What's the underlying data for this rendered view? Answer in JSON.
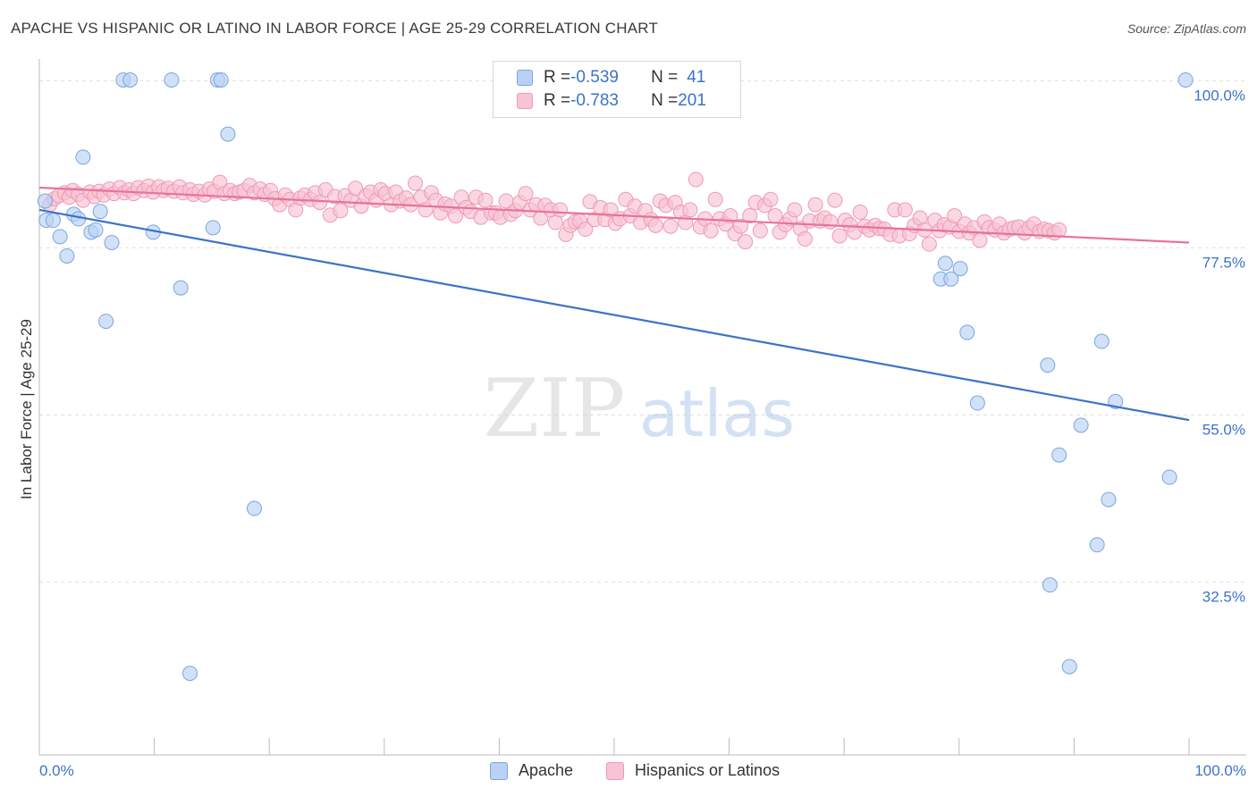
{
  "header": {
    "title": "APACHE VS HISPANIC OR LATINO IN LABOR FORCE | AGE 25-29 CORRELATION CHART",
    "source": "Source: ZipAtlas.com"
  },
  "watermark": {
    "zip": "ZIP",
    "atlas": "atlas"
  },
  "legend_top": {
    "rows": [
      {
        "r_label": "R = ",
        "r_value": "-0.539",
        "n_label": "N = ",
        "n_value": "41"
      },
      {
        "r_label": "R = ",
        "r_value": "-0.783",
        "n_label": "N = ",
        "n_value": "201"
      }
    ]
  },
  "legend_bottom": {
    "apache": "Apache",
    "hispanic": "Hispanics or Latinos"
  },
  "colors": {
    "apache_fill": "#b9d1f3",
    "apache_stroke": "#7aa6e0",
    "apache_line": "#3b73c8",
    "hispanic_fill": "#f8c3d3",
    "hispanic_stroke": "#ee9ab5",
    "hispanic_line": "#e8729a",
    "axis_text": "#3b73c8",
    "grid": "#dddddd"
  },
  "chart_data": {
    "type": "scatter",
    "title": "APACHE VS HISPANIC OR LATINO IN LABOR FORCE | AGE 25-29 CORRELATION CHART",
    "xlabel": "",
    "ylabel": "In Labor Force | Age 25-29",
    "xlim": [
      0,
      100
    ],
    "ylim": [
      9.2,
      102.2
    ],
    "x_tick_labels": [
      "0.0%",
      "100.0%"
    ],
    "y_ticks": [
      {
        "value": 100,
        "label": "100.0%"
      },
      {
        "value": 77.5,
        "label": "77.5%"
      },
      {
        "value": 55,
        "label": "55.0%"
      },
      {
        "value": 32.5,
        "label": "32.5%"
      }
    ],
    "grid": true,
    "legend_position": "top-center",
    "series": [
      {
        "name": "Apache",
        "r": -0.539,
        "n": 41,
        "trend": {
          "x": [
            0,
            100
          ],
          "y": [
            82.6,
            54.3
          ]
        },
        "points": [
          [
            0.5,
            83.8
          ],
          [
            0.6,
            81.2
          ],
          [
            1.2,
            81.2
          ],
          [
            1.8,
            79.0
          ],
          [
            2.4,
            76.4
          ],
          [
            3.0,
            82.0
          ],
          [
            3.4,
            81.4
          ],
          [
            3.8,
            89.7
          ],
          [
            4.5,
            79.6
          ],
          [
            4.9,
            79.9
          ],
          [
            5.3,
            82.4
          ],
          [
            5.8,
            67.6
          ],
          [
            6.3,
            78.2
          ],
          [
            7.3,
            100.1
          ],
          [
            7.9,
            100.1
          ],
          [
            9.9,
            79.6
          ],
          [
            11.5,
            100.1
          ],
          [
            12.3,
            72.1
          ],
          [
            13.1,
            20.2
          ],
          [
            15.1,
            80.2
          ],
          [
            15.5,
            100.1
          ],
          [
            15.8,
            100.1
          ],
          [
            16.4,
            92.8
          ],
          [
            18.7,
            42.4
          ],
          [
            78.4,
            73.3
          ],
          [
            78.8,
            75.4
          ],
          [
            79.3,
            73.3
          ],
          [
            80.1,
            74.7
          ],
          [
            80.7,
            66.1
          ],
          [
            81.6,
            56.6
          ],
          [
            87.7,
            61.7
          ],
          [
            87.9,
            32.1
          ],
          [
            88.7,
            49.6
          ],
          [
            89.6,
            21.1
          ],
          [
            90.6,
            53.6
          ],
          [
            92.0,
            37.5
          ],
          [
            92.4,
            64.9
          ],
          [
            93.0,
            43.6
          ],
          [
            93.6,
            56.8
          ],
          [
            98.3,
            46.6
          ],
          [
            99.7,
            100.1
          ]
        ]
      },
      {
        "name": "Hispanics or Latinos",
        "r": -0.783,
        "n": 201,
        "trend": {
          "x": [
            0,
            100
          ],
          "y": [
            85.6,
            78.2
          ]
        },
        "points": [
          [
            0.9,
            83.3
          ],
          [
            1.3,
            84.1
          ],
          [
            1.7,
            84.5
          ],
          [
            2.2,
            84.9
          ],
          [
            2.6,
            84.3
          ],
          [
            2.9,
            85.2
          ],
          [
            3.4,
            84.7
          ],
          [
            3.8,
            83.9
          ],
          [
            4.4,
            85.0
          ],
          [
            4.8,
            84.4
          ],
          [
            5.2,
            85.1
          ],
          [
            5.6,
            84.6
          ],
          [
            6.1,
            85.4
          ],
          [
            6.5,
            84.8
          ],
          [
            7.0,
            85.6
          ],
          [
            7.4,
            84.9
          ],
          [
            7.8,
            85.3
          ],
          [
            8.2,
            84.8
          ],
          [
            8.6,
            85.6
          ],
          [
            9.1,
            85.2
          ],
          [
            9.5,
            85.8
          ],
          [
            9.9,
            85.0
          ],
          [
            10.4,
            85.7
          ],
          [
            10.8,
            85.2
          ],
          [
            11.2,
            85.5
          ],
          [
            11.7,
            85.1
          ],
          [
            12.2,
            85.7
          ],
          [
            12.5,
            84.9
          ],
          [
            13.1,
            85.3
          ],
          [
            13.4,
            84.7
          ],
          [
            13.9,
            85.1
          ],
          [
            14.4,
            84.6
          ],
          [
            14.8,
            85.4
          ],
          [
            15.2,
            85.1
          ],
          [
            15.7,
            86.3
          ],
          [
            16.1,
            84.8
          ],
          [
            16.6,
            85.2
          ],
          [
            17.0,
            84.8
          ],
          [
            17.4,
            85.0
          ],
          [
            17.8,
            85.2
          ],
          [
            18.3,
            85.9
          ],
          [
            18.7,
            84.9
          ],
          [
            19.2,
            85.4
          ],
          [
            19.6,
            84.7
          ],
          [
            20.1,
            85.2
          ],
          [
            20.5,
            84.1
          ],
          [
            20.9,
            83.3
          ],
          [
            21.4,
            84.6
          ],
          [
            21.8,
            84.0
          ],
          [
            22.3,
            82.6
          ],
          [
            22.7,
            84.2
          ],
          [
            23.1,
            84.6
          ],
          [
            23.6,
            84.0
          ],
          [
            24.0,
            84.9
          ],
          [
            24.4,
            83.6
          ],
          [
            24.9,
            85.3
          ],
          [
            25.3,
            81.9
          ],
          [
            25.7,
            84.4
          ],
          [
            26.2,
            82.5
          ],
          [
            26.6,
            84.5
          ],
          [
            27.1,
            83.9
          ],
          [
            27.5,
            85.5
          ],
          [
            28.0,
            83.1
          ],
          [
            28.4,
            84.5
          ],
          [
            28.8,
            85.0
          ],
          [
            29.3,
            83.9
          ],
          [
            29.7,
            85.3
          ],
          [
            30.1,
            84.8
          ],
          [
            30.6,
            83.3
          ],
          [
            31.0,
            85.0
          ],
          [
            31.4,
            83.8
          ],
          [
            31.9,
            84.2
          ],
          [
            32.3,
            83.3
          ],
          [
            32.7,
            86.2
          ],
          [
            33.2,
            84.3
          ],
          [
            33.6,
            82.6
          ],
          [
            34.1,
            84.9
          ],
          [
            34.5,
            83.9
          ],
          [
            34.9,
            82.2
          ],
          [
            35.3,
            83.4
          ],
          [
            35.8,
            83.1
          ],
          [
            36.2,
            81.8
          ],
          [
            36.7,
            84.3
          ],
          [
            37.1,
            82.9
          ],
          [
            37.5,
            82.4
          ],
          [
            38.0,
            84.3
          ],
          [
            38.4,
            81.6
          ],
          [
            38.8,
            83.9
          ],
          [
            39.3,
            82.2
          ],
          [
            39.7,
            82.2
          ],
          [
            40.1,
            81.6
          ],
          [
            40.6,
            83.8
          ],
          [
            41.0,
            82.0
          ],
          [
            41.4,
            82.5
          ],
          [
            41.8,
            83.6
          ],
          [
            42.3,
            84.8
          ],
          [
            42.7,
            82.6
          ],
          [
            43.2,
            83.3
          ],
          [
            43.6,
            81.5
          ],
          [
            44.0,
            83.2
          ],
          [
            44.5,
            82.6
          ],
          [
            44.9,
            80.9
          ],
          [
            45.3,
            82.6
          ],
          [
            45.8,
            79.3
          ],
          [
            46.2,
            80.5
          ],
          [
            46.6,
            81.0
          ],
          [
            47.0,
            81.1
          ],
          [
            47.5,
            80.0
          ],
          [
            47.9,
            83.7
          ],
          [
            48.3,
            81.3
          ],
          [
            48.8,
            82.9
          ],
          [
            49.2,
            81.3
          ],
          [
            49.7,
            82.6
          ],
          [
            50.1,
            80.8
          ],
          [
            50.5,
            81.4
          ],
          [
            51.0,
            84.0
          ],
          [
            51.4,
            81.8
          ],
          [
            51.8,
            83.1
          ],
          [
            52.3,
            80.9
          ],
          [
            52.7,
            82.5
          ],
          [
            53.2,
            81.3
          ],
          [
            53.6,
            80.5
          ],
          [
            54.0,
            83.8
          ],
          [
            54.5,
            83.2
          ],
          [
            54.9,
            80.4
          ],
          [
            55.3,
            83.6
          ],
          [
            55.8,
            82.3
          ],
          [
            56.2,
            80.9
          ],
          [
            56.6,
            82.6
          ],
          [
            57.1,
            86.7
          ],
          [
            57.5,
            80.3
          ],
          [
            57.9,
            81.4
          ],
          [
            58.4,
            79.8
          ],
          [
            58.8,
            84.0
          ],
          [
            59.2,
            81.4
          ],
          [
            59.7,
            80.7
          ],
          [
            60.1,
            81.8
          ],
          [
            60.5,
            79.4
          ],
          [
            61.0,
            80.4
          ],
          [
            61.4,
            78.3
          ],
          [
            61.8,
            81.8
          ],
          [
            62.3,
            83.6
          ],
          [
            62.7,
            79.8
          ],
          [
            63.1,
            83.2
          ],
          [
            63.6,
            84.0
          ],
          [
            64.0,
            81.8
          ],
          [
            64.4,
            79.6
          ],
          [
            64.9,
            80.6
          ],
          [
            65.3,
            81.4
          ],
          [
            65.7,
            82.6
          ],
          [
            66.2,
            80.1
          ],
          [
            66.6,
            78.7
          ],
          [
            67.0,
            81.1
          ],
          [
            67.5,
            83.3
          ],
          [
            67.9,
            81.1
          ],
          [
            68.3,
            81.5
          ],
          [
            68.8,
            81.0
          ],
          [
            69.2,
            83.9
          ],
          [
            69.6,
            79.1
          ],
          [
            70.1,
            81.2
          ],
          [
            70.5,
            80.6
          ],
          [
            70.9,
            79.6
          ],
          [
            71.4,
            82.3
          ],
          [
            71.8,
            80.4
          ],
          [
            72.2,
            79.9
          ],
          [
            72.7,
            80.5
          ],
          [
            73.1,
            80.1
          ],
          [
            73.5,
            80.0
          ],
          [
            74.0,
            79.3
          ],
          [
            74.4,
            82.6
          ],
          [
            74.8,
            79.1
          ],
          [
            75.3,
            82.6
          ],
          [
            75.7,
            79.4
          ],
          [
            76.1,
            80.5
          ],
          [
            76.6,
            81.5
          ],
          [
            77.0,
            79.9
          ],
          [
            77.4,
            78.0
          ],
          [
            77.9,
            81.2
          ],
          [
            78.3,
            79.8
          ],
          [
            78.7,
            80.6
          ],
          [
            79.2,
            80.3
          ],
          [
            79.6,
            81.8
          ],
          [
            80.0,
            79.7
          ],
          [
            80.5,
            80.7
          ],
          [
            80.9,
            79.5
          ],
          [
            81.3,
            80.2
          ],
          [
            81.8,
            78.5
          ],
          [
            82.2,
            81.0
          ],
          [
            82.6,
            80.2
          ],
          [
            83.1,
            79.9
          ],
          [
            83.5,
            80.7
          ],
          [
            83.9,
            79.5
          ],
          [
            84.4,
            80.0
          ],
          [
            84.8,
            80.2
          ],
          [
            85.2,
            80.3
          ],
          [
            85.7,
            79.5
          ],
          [
            86.1,
            80.2
          ],
          [
            86.5,
            80.7
          ],
          [
            87.0,
            79.7
          ],
          [
            87.4,
            80.0
          ],
          [
            87.8,
            79.8
          ],
          [
            88.3,
            79.5
          ],
          [
            88.7,
            79.9
          ]
        ]
      }
    ]
  }
}
